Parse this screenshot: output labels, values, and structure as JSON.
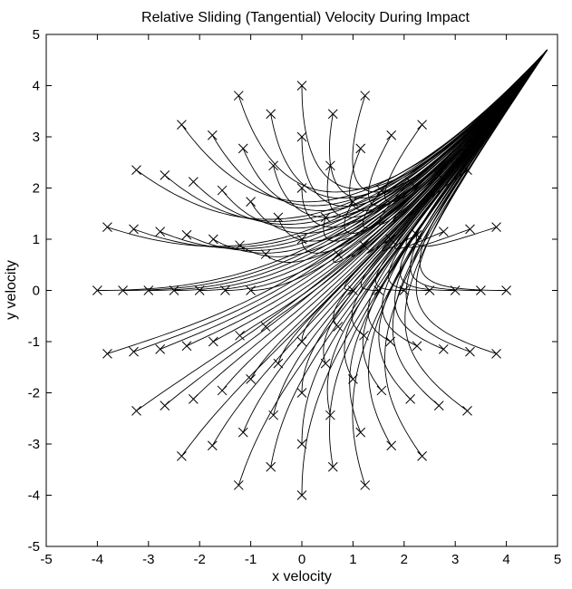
{
  "chart_data": {
    "type": "line",
    "title": "Relative Sliding (Tangential) Velocity During Impact",
    "xlabel": "x velocity",
    "ylabel": "y velocity",
    "xlim": [
      -5,
      5
    ],
    "ylim": [
      -5,
      5
    ],
    "xticks": [
      "-5",
      "-4",
      "-3",
      "-2",
      "-1",
      "0",
      "1",
      "2",
      "3",
      "4",
      "5"
    ],
    "yticks": [
      "-5",
      "-4",
      "-3",
      "-2",
      "-1",
      "0",
      "1",
      "2",
      "3",
      "4",
      "5"
    ],
    "grid": false,
    "legend": "none",
    "start_marker": "x",
    "line_color": "#000000",
    "attractor_point": [
      4.8,
      4.7
    ],
    "sticking_point": [
      0,
      0
    ],
    "start_rings": [
      {
        "radius": 1,
        "count": 8
      },
      {
        "radius": 1.5,
        "count": 10
      },
      {
        "radius": 2,
        "count": 12
      },
      {
        "radius": 2.5,
        "count": 14
      },
      {
        "radius": 3,
        "count": 16
      },
      {
        "radius": 3.5,
        "count": 18
      },
      {
        "radius": 4,
        "count": 20
      }
    ],
    "sample_trajectories": [
      {
        "start": [
          -4.0,
          0.0
        ],
        "end": [
          4.8,
          4.7
        ]
      },
      {
        "start": [
          -1.5,
          -3.7
        ],
        "end": [
          4.8,
          4.7
        ]
      },
      {
        "start": [
          0.0,
          -4.0
        ],
        "end": [
          4.8,
          4.7
        ]
      },
      {
        "start": [
          1.5,
          -3.7
        ],
        "end": [
          4.8,
          4.7
        ]
      },
      {
        "start": [
          4.0,
          0.0
        ],
        "end": [
          4.8,
          4.7
        ]
      },
      {
        "start": [
          0.0,
          4.0
        ],
        "end": [
          4.8,
          4.7
        ]
      },
      {
        "start": [
          -3.7,
          1.5
        ],
        "end": [
          4.8,
          4.7
        ]
      }
    ]
  }
}
